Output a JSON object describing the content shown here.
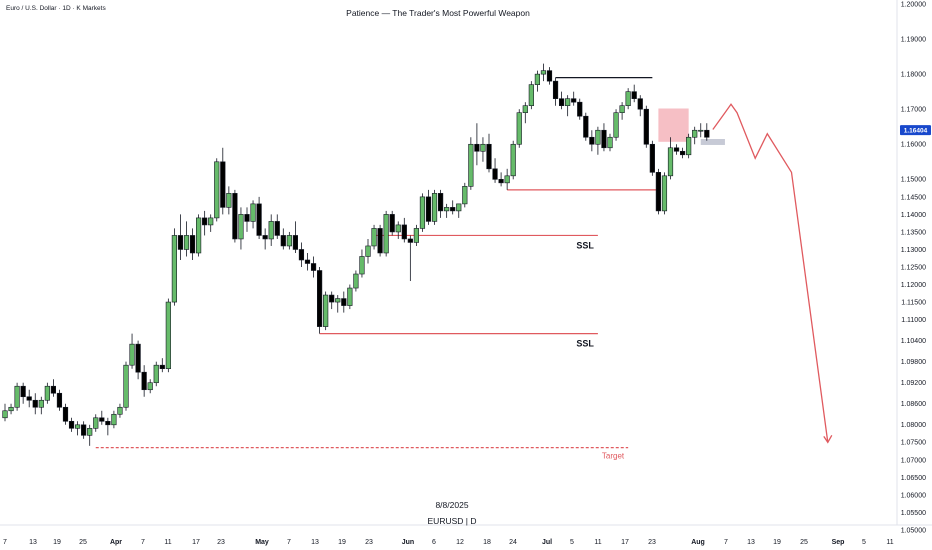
{
  "header": {
    "symbol": "Euro / U.S. Dollar · 1D · K Markets",
    "title": "Patience — The Trader's Most Powerful Weapon"
  },
  "watermark": {
    "date": "8/8/2025",
    "ticker": "EURUSD | D"
  },
  "colors": {
    "up": "#66bb6a",
    "down": "#000000",
    "red_line": "#e05a5f",
    "fvg_fill": "#f5b8bf",
    "current_price_bg": "#1848cc",
    "grey_box": "#c7cad6"
  },
  "chart_data": {
    "type": "candlestick",
    "y_axis": {
      "min": 1.05,
      "max": 1.2,
      "labels": [
        "1.20000",
        "1.19000",
        "1.18000",
        "1.17000",
        "1.16000",
        "1.15000",
        "1.14500",
        "1.14000",
        "1.13500",
        "1.13000",
        "1.12500",
        "1.12000",
        "1.11500",
        "1.11000",
        "1.10400",
        "1.09800",
        "1.09200",
        "1.08600",
        "1.08000",
        "1.07500",
        "1.07000",
        "1.06500",
        "1.06000",
        "1.05500",
        "1.05000"
      ],
      "label_values": [
        1.2,
        1.19,
        1.18,
        1.17,
        1.16,
        1.15,
        1.145,
        1.14,
        1.135,
        1.13,
        1.125,
        1.12,
        1.115,
        1.11,
        1.104,
        1.098,
        1.092,
        1.086,
        1.08,
        1.075,
        1.07,
        1.065,
        1.06,
        1.055,
        1.05
      ]
    },
    "x_axis": {
      "labels": [
        "7",
        "13",
        "19",
        "25",
        "Apr",
        "7",
        "11",
        "17",
        "23",
        "May",
        "7",
        "13",
        "19",
        "23",
        "Jun",
        "6",
        "12",
        "18",
        "24",
        "Jul",
        "5",
        "11",
        "17",
        "23",
        "Aug",
        "7",
        "13",
        "19",
        "25",
        "Sep",
        "5",
        "11"
      ],
      "bold": [
        "Apr",
        "May",
        "Jun",
        "Jul",
        "Aug",
        "Sep"
      ]
    },
    "candles": [
      [
        1.082,
        1.086,
        1.081,
        1.084
      ],
      [
        1.084,
        1.086,
        1.083,
        1.085
      ],
      [
        1.085,
        1.092,
        1.084,
        1.091
      ],
      [
        1.091,
        1.092,
        1.086,
        1.088
      ],
      [
        1.088,
        1.09,
        1.085,
        1.087
      ],
      [
        1.087,
        1.089,
        1.083,
        1.085
      ],
      [
        1.085,
        1.088,
        1.083,
        1.087
      ],
      [
        1.087,
        1.092,
        1.086,
        1.091
      ],
      [
        1.091,
        1.093,
        1.088,
        1.089
      ],
      [
        1.089,
        1.09,
        1.084,
        1.085
      ],
      [
        1.085,
        1.086,
        1.08,
        1.081
      ],
      [
        1.081,
        1.082,
        1.078,
        1.079
      ],
      [
        1.079,
        1.081,
        1.077,
        1.08
      ],
      [
        1.08,
        1.081,
        1.076,
        1.077
      ],
      [
        1.077,
        1.08,
        1.074,
        1.079
      ],
      [
        1.079,
        1.083,
        1.078,
        1.082
      ],
      [
        1.082,
        1.084,
        1.08,
        1.081
      ],
      [
        1.081,
        1.082,
        1.077,
        1.08
      ],
      [
        1.08,
        1.084,
        1.079,
        1.083
      ],
      [
        1.083,
        1.086,
        1.082,
        1.085
      ],
      [
        1.085,
        1.098,
        1.084,
        1.097
      ],
      [
        1.097,
        1.106,
        1.096,
        1.103
      ],
      [
        1.103,
        1.104,
        1.093,
        1.095
      ],
      [
        1.095,
        1.097,
        1.088,
        1.09
      ],
      [
        1.09,
        1.093,
        1.089,
        1.092
      ],
      [
        1.092,
        1.098,
        1.091,
        1.097
      ],
      [
        1.097,
        1.099,
        1.095,
        1.096
      ],
      [
        1.096,
        1.116,
        1.095,
        1.115
      ],
      [
        1.115,
        1.136,
        1.114,
        1.134
      ],
      [
        1.134,
        1.14,
        1.127,
        1.13
      ],
      [
        1.13,
        1.138,
        1.128,
        1.134
      ],
      [
        1.134,
        1.136,
        1.127,
        1.129
      ],
      [
        1.129,
        1.14,
        1.128,
        1.139
      ],
      [
        1.139,
        1.141,
        1.134,
        1.137
      ],
      [
        1.137,
        1.14,
        1.135,
        1.139
      ],
      [
        1.139,
        1.156,
        1.138,
        1.155
      ],
      [
        1.155,
        1.159,
        1.14,
        1.142
      ],
      [
        1.142,
        1.148,
        1.14,
        1.146
      ],
      [
        1.146,
        1.147,
        1.132,
        1.133
      ],
      [
        1.133,
        1.142,
        1.13,
        1.14
      ],
      [
        1.14,
        1.142,
        1.135,
        1.138
      ],
      [
        1.138,
        1.144,
        1.136,
        1.143
      ],
      [
        1.143,
        1.145,
        1.133,
        1.134
      ],
      [
        1.134,
        1.136,
        1.13,
        1.133
      ],
      [
        1.133,
        1.14,
        1.131,
        1.138
      ],
      [
        1.138,
        1.14,
        1.133,
        1.134
      ],
      [
        1.134,
        1.136,
        1.13,
        1.131
      ],
      [
        1.131,
        1.135,
        1.13,
        1.134
      ],
      [
        1.134,
        1.138,
        1.129,
        1.13
      ],
      [
        1.13,
        1.132,
        1.125,
        1.127
      ],
      [
        1.127,
        1.129,
        1.124,
        1.126
      ],
      [
        1.126,
        1.128,
        1.122,
        1.124
      ],
      [
        1.124,
        1.125,
        1.106,
        1.108
      ],
      [
        1.108,
        1.118,
        1.107,
        1.117
      ],
      [
        1.117,
        1.118,
        1.113,
        1.115
      ],
      [
        1.115,
        1.117,
        1.112,
        1.116
      ],
      [
        1.116,
        1.118,
        1.112,
        1.114
      ],
      [
        1.114,
        1.12,
        1.113,
        1.119
      ],
      [
        1.119,
        1.124,
        1.118,
        1.123
      ],
      [
        1.123,
        1.13,
        1.122,
        1.128
      ],
      [
        1.128,
        1.133,
        1.126,
        1.131
      ],
      [
        1.131,
        1.137,
        1.13,
        1.136
      ],
      [
        1.136,
        1.137,
        1.128,
        1.129
      ],
      [
        1.129,
        1.141,
        1.128,
        1.14
      ],
      [
        1.14,
        1.141,
        1.134,
        1.135
      ],
      [
        1.135,
        1.138,
        1.133,
        1.137
      ],
      [
        1.137,
        1.139,
        1.132,
        1.133
      ],
      [
        1.133,
        1.134,
        1.121,
        1.132
      ],
      [
        1.132,
        1.137,
        1.131,
        1.136
      ],
      [
        1.136,
        1.146,
        1.135,
        1.145
      ],
      [
        1.145,
        1.147,
        1.137,
        1.138
      ],
      [
        1.138,
        1.147,
        1.137,
        1.146
      ],
      [
        1.146,
        1.147,
        1.139,
        1.141
      ],
      [
        1.141,
        1.143,
        1.139,
        1.142
      ],
      [
        1.142,
        1.144,
        1.14,
        1.141
      ],
      [
        1.141,
        1.143,
        1.139,
        1.143
      ],
      [
        1.143,
        1.149,
        1.142,
        1.148
      ],
      [
        1.148,
        1.162,
        1.147,
        1.16
      ],
      [
        1.16,
        1.166,
        1.154,
        1.158
      ],
      [
        1.158,
        1.162,
        1.155,
        1.16
      ],
      [
        1.16,
        1.163,
        1.152,
        1.153
      ],
      [
        1.153,
        1.156,
        1.149,
        1.15
      ],
      [
        1.15,
        1.152,
        1.148,
        1.149
      ],
      [
        1.149,
        1.153,
        1.147,
        1.151
      ],
      [
        1.151,
        1.161,
        1.15,
        1.16
      ],
      [
        1.16,
        1.17,
        1.159,
        1.169
      ],
      [
        1.169,
        1.172,
        1.166,
        1.171
      ],
      [
        1.171,
        1.178,
        1.17,
        1.177
      ],
      [
        1.177,
        1.181,
        1.175,
        1.18
      ],
      [
        1.18,
        1.183,
        1.178,
        1.181
      ],
      [
        1.181,
        1.182,
        1.177,
        1.178
      ],
      [
        1.178,
        1.179,
        1.171,
        1.173
      ],
      [
        1.173,
        1.175,
        1.17,
        1.171
      ],
      [
        1.171,
        1.174,
        1.168,
        1.173
      ],
      [
        1.173,
        1.175,
        1.171,
        1.172
      ],
      [
        1.172,
        1.173,
        1.167,
        1.168
      ],
      [
        1.168,
        1.169,
        1.161,
        1.162
      ],
      [
        1.162,
        1.164,
        1.158,
        1.16
      ],
      [
        1.16,
        1.165,
        1.157,
        1.164
      ],
      [
        1.164,
        1.166,
        1.158,
        1.159
      ],
      [
        1.159,
        1.163,
        1.158,
        1.162
      ],
      [
        1.162,
        1.17,
        1.161,
        1.169
      ],
      [
        1.169,
        1.172,
        1.167,
        1.171
      ],
      [
        1.171,
        1.176,
        1.17,
        1.175
      ],
      [
        1.175,
        1.177,
        1.172,
        1.173
      ],
      [
        1.173,
        1.174,
        1.168,
        1.17
      ],
      [
        1.17,
        1.171,
        1.159,
        1.16
      ],
      [
        1.16,
        1.161,
        1.151,
        1.152
      ],
      [
        1.152,
        1.153,
        1.14,
        1.141
      ],
      [
        1.141,
        1.152,
        1.14,
        1.151
      ],
      [
        1.151,
        1.162,
        1.15,
        1.159
      ],
      [
        1.159,
        1.16,
        1.157,
        1.158
      ],
      [
        1.158,
        1.159,
        1.156,
        1.157
      ],
      [
        1.157,
        1.163,
        1.156,
        1.162
      ],
      [
        1.162,
        1.165,
        1.16,
        1.164
      ],
      [
        1.164,
        1.166,
        1.162,
        1.164
      ],
      [
        1.164,
        1.166,
        1.161,
        1.162
      ]
    ],
    "current_price": "1.16404",
    "levels": [
      {
        "from_index": 61,
        "to_index": 98,
        "price": 1.134,
        "label": "SSL"
      },
      {
        "from_index": 52,
        "to_index": 98,
        "price": 1.106,
        "label": "SSL"
      },
      {
        "from_index": 91,
        "to_index": 107,
        "price": 1.179,
        "label": ""
      },
      {
        "from_index": 83,
        "to_index": 108,
        "price": 1.147,
        "label": ""
      },
      {
        "from_index": 15,
        "to_index": 103,
        "price": 1.0735,
        "label": "Target",
        "dashed": true
      }
    ],
    "fvg_zone": {
      "from_index": 108,
      "to_index": 113,
      "top": 1.1702,
      "bottom": 1.1607
    },
    "small_zone": {
      "from_index": 115,
      "to_index": 119,
      "top": 1.1615,
      "bottom": 1.1598
    },
    "projection": {
      "points_index": [
        [
          117,
          1.1642
        ],
        [
          119,
          1.169
        ],
        [
          120,
          1.1714
        ],
        [
          121,
          1.169
        ],
        [
          124,
          1.156
        ],
        [
          126,
          1.163
        ],
        [
          130,
          1.152
        ],
        [
          136,
          1.075
        ]
      ]
    }
  }
}
